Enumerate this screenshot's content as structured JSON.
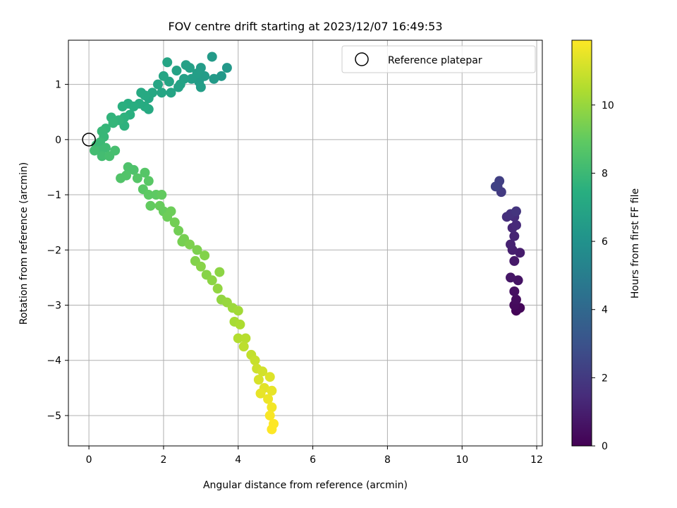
{
  "chart_data": {
    "type": "scatter",
    "title": "FOV centre drift starting at 2023/12/07 16:49:53",
    "xlabel": "Angular distance from reference (arcmin)",
    "ylabel": "Rotation from reference (arcmin)",
    "xlim": [
      -0.55,
      12.15
    ],
    "ylim": [
      -5.55,
      1.8
    ],
    "xticks": [
      0,
      2,
      4,
      6,
      8,
      10,
      12
    ],
    "yticks": [
      -5,
      -4,
      -3,
      -2,
      -1,
      0,
      1
    ],
    "grid": true,
    "legend": {
      "position": "top-right",
      "entries": [
        "Reference platepar"
      ]
    },
    "reference_point": {
      "x": 0,
      "y": 0
    },
    "colorbar": {
      "label": "Hours from first FF file",
      "colormap": "viridis",
      "range": [
        0,
        11.9
      ],
      "ticks": [
        0,
        2,
        4,
        6,
        8,
        10
      ]
    },
    "series": [
      {
        "points": [
          {
            "x": 11.45,
            "y": -3.1,
            "c": 0.1
          },
          {
            "x": 11.55,
            "y": -3.05,
            "c": 0.2
          },
          {
            "x": 11.4,
            "y": -3.0,
            "c": 0.3
          },
          {
            "x": 11.45,
            "y": -2.9,
            "c": 0.4
          },
          {
            "x": 11.4,
            "y": -2.75,
            "c": 0.5
          },
          {
            "x": 11.5,
            "y": -2.55,
            "c": 0.6
          },
          {
            "x": 11.3,
            "y": -2.5,
            "c": 0.7
          },
          {
            "x": 11.4,
            "y": -2.2,
            "c": 0.8
          },
          {
            "x": 11.55,
            "y": -2.05,
            "c": 0.9
          },
          {
            "x": 11.35,
            "y": -2.0,
            "c": 1.0
          },
          {
            "x": 11.3,
            "y": -1.9,
            "c": 1.1
          },
          {
            "x": 11.4,
            "y": -1.75,
            "c": 1.2
          },
          {
            "x": 11.35,
            "y": -1.6,
            "c": 1.3
          },
          {
            "x": 11.45,
            "y": -1.55,
            "c": 1.4
          },
          {
            "x": 11.4,
            "y": -1.4,
            "c": 1.5
          },
          {
            "x": 11.2,
            "y": -1.4,
            "c": 1.6
          },
          {
            "x": 11.3,
            "y": -1.35,
            "c": 1.7
          },
          {
            "x": 11.45,
            "y": -1.3,
            "c": 1.8
          },
          {
            "x": 11.05,
            "y": -0.95,
            "c": 2.0
          },
          {
            "x": 10.95,
            "y": -0.85,
            "c": 2.1
          },
          {
            "x": 11.0,
            "y": -0.75,
            "c": 2.2
          },
          {
            "x": 10.9,
            "y": -0.85,
            "c": 2.3
          },
          {
            "x": 3.7,
            "y": 1.3,
            "c": 6.3
          },
          {
            "x": 3.55,
            "y": 1.15,
            "c": 6.3
          },
          {
            "x": 3.3,
            "y": 1.5,
            "c": 6.4
          },
          {
            "x": 3.35,
            "y": 1.1,
            "c": 6.4
          },
          {
            "x": 3.1,
            "y": 1.15,
            "c": 6.5
          },
          {
            "x": 3.0,
            "y": 1.3,
            "c": 6.5
          },
          {
            "x": 2.95,
            "y": 1.05,
            "c": 6.5
          },
          {
            "x": 3.0,
            "y": 0.95,
            "c": 6.6
          },
          {
            "x": 2.9,
            "y": 1.2,
            "c": 6.6
          },
          {
            "x": 2.75,
            "y": 1.1,
            "c": 6.6
          },
          {
            "x": 2.7,
            "y": 1.3,
            "c": 6.7
          },
          {
            "x": 2.6,
            "y": 1.35,
            "c": 6.7
          },
          {
            "x": 2.55,
            "y": 1.1,
            "c": 6.7
          },
          {
            "x": 2.45,
            "y": 1.0,
            "c": 6.8
          },
          {
            "x": 2.35,
            "y": 1.25,
            "c": 6.8
          },
          {
            "x": 2.4,
            "y": 0.95,
            "c": 6.8
          },
          {
            "x": 2.15,
            "y": 1.05,
            "c": 6.9
          },
          {
            "x": 2.2,
            "y": 0.85,
            "c": 6.9
          },
          {
            "x": 2.1,
            "y": 1.4,
            "c": 6.9
          },
          {
            "x": 2.0,
            "y": 1.15,
            "c": 7.0
          },
          {
            "x": 1.95,
            "y": 0.85,
            "c": 7.0
          },
          {
            "x": 1.85,
            "y": 1.0,
            "c": 7.0
          },
          {
            "x": 1.7,
            "y": 0.85,
            "c": 7.1
          },
          {
            "x": 1.6,
            "y": 0.75,
            "c": 7.1
          },
          {
            "x": 1.5,
            "y": 0.8,
            "c": 7.2
          },
          {
            "x": 1.4,
            "y": 0.85,
            "c": 7.2
          },
          {
            "x": 1.6,
            "y": 0.55,
            "c": 7.2
          },
          {
            "x": 1.5,
            "y": 0.6,
            "c": 7.3
          },
          {
            "x": 1.35,
            "y": 0.65,
            "c": 7.3
          },
          {
            "x": 1.2,
            "y": 0.6,
            "c": 7.4
          },
          {
            "x": 1.05,
            "y": 0.65,
            "c": 7.4
          },
          {
            "x": 0.9,
            "y": 0.6,
            "c": 7.5
          },
          {
            "x": 1.1,
            "y": 0.45,
            "c": 7.5
          },
          {
            "x": 0.95,
            "y": 0.4,
            "c": 7.6
          },
          {
            "x": 0.95,
            "y": 0.25,
            "c": 7.6
          },
          {
            "x": 0.8,
            "y": 0.35,
            "c": 7.7
          },
          {
            "x": 0.6,
            "y": 0.4,
            "c": 7.7
          },
          {
            "x": 0.65,
            "y": 0.3,
            "c": 7.8
          },
          {
            "x": 0.45,
            "y": 0.2,
            "c": 7.8
          },
          {
            "x": 0.35,
            "y": 0.15,
            "c": 7.9
          },
          {
            "x": 0.4,
            "y": 0.05,
            "c": 7.9
          },
          {
            "x": 0.3,
            "y": -0.05,
            "c": 8.0
          },
          {
            "x": 0.2,
            "y": -0.1,
            "c": 8.0
          },
          {
            "x": 0.3,
            "y": -0.2,
            "c": 8.1
          },
          {
            "x": 0.45,
            "y": -0.15,
            "c": 8.1
          },
          {
            "x": 0.15,
            "y": -0.2,
            "c": 8.2
          },
          {
            "x": 0.35,
            "y": -0.3,
            "c": 8.2
          },
          {
            "x": 0.55,
            "y": -0.3,
            "c": 8.3
          },
          {
            "x": 0.7,
            "y": -0.2,
            "c": 8.3
          },
          {
            "x": 1.05,
            "y": -0.5,
            "c": 8.5
          },
          {
            "x": 1.2,
            "y": -0.55,
            "c": 8.5
          },
          {
            "x": 1.0,
            "y": -0.65,
            "c": 8.6
          },
          {
            "x": 0.85,
            "y": -0.7,
            "c": 8.6
          },
          {
            "x": 1.3,
            "y": -0.7,
            "c": 8.7
          },
          {
            "x": 1.5,
            "y": -0.6,
            "c": 8.7
          },
          {
            "x": 1.6,
            "y": -0.75,
            "c": 8.8
          },
          {
            "x": 1.45,
            "y": -0.9,
            "c": 8.8
          },
          {
            "x": 1.6,
            "y": -1.0,
            "c": 8.9
          },
          {
            "x": 1.8,
            "y": -1.0,
            "c": 8.9
          },
          {
            "x": 1.95,
            "y": -1.0,
            "c": 9.0
          },
          {
            "x": 1.65,
            "y": -1.2,
            "c": 9.0
          },
          {
            "x": 1.9,
            "y": -1.2,
            "c": 9.1
          },
          {
            "x": 2.0,
            "y": -1.3,
            "c": 9.1
          },
          {
            "x": 2.2,
            "y": -1.3,
            "c": 9.2
          },
          {
            "x": 2.1,
            "y": -1.4,
            "c": 9.2
          },
          {
            "x": 2.3,
            "y": -1.5,
            "c": 9.3
          },
          {
            "x": 2.4,
            "y": -1.65,
            "c": 9.3
          },
          {
            "x": 2.55,
            "y": -1.8,
            "c": 9.4
          },
          {
            "x": 2.5,
            "y": -1.85,
            "c": 9.4
          },
          {
            "x": 2.7,
            "y": -1.9,
            "c": 9.5
          },
          {
            "x": 2.9,
            "y": -2.0,
            "c": 9.5
          },
          {
            "x": 3.1,
            "y": -2.1,
            "c": 9.6
          },
          {
            "x": 2.85,
            "y": -2.2,
            "c": 9.6
          },
          {
            "x": 3.0,
            "y": -2.3,
            "c": 9.7
          },
          {
            "x": 3.15,
            "y": -2.45,
            "c": 9.7
          },
          {
            "x": 3.3,
            "y": -2.55,
            "c": 9.8
          },
          {
            "x": 3.5,
            "y": -2.4,
            "c": 9.8
          },
          {
            "x": 3.45,
            "y": -2.7,
            "c": 9.9
          },
          {
            "x": 3.55,
            "y": -2.9,
            "c": 9.9
          },
          {
            "x": 3.7,
            "y": -2.95,
            "c": 10.0
          },
          {
            "x": 3.85,
            "y": -3.05,
            "c": 10.1
          },
          {
            "x": 4.0,
            "y": -3.1,
            "c": 10.2
          },
          {
            "x": 3.9,
            "y": -3.3,
            "c": 10.3
          },
          {
            "x": 4.05,
            "y": -3.35,
            "c": 10.4
          },
          {
            "x": 4.0,
            "y": -3.6,
            "c": 10.5
          },
          {
            "x": 4.2,
            "y": -3.6,
            "c": 10.6
          },
          {
            "x": 4.15,
            "y": -3.75,
            "c": 10.7
          },
          {
            "x": 4.35,
            "y": -3.9,
            "c": 10.8
          },
          {
            "x": 4.45,
            "y": -4.0,
            "c": 10.9
          },
          {
            "x": 4.5,
            "y": -4.15,
            "c": 11.0
          },
          {
            "x": 4.65,
            "y": -4.2,
            "c": 11.1
          },
          {
            "x": 4.55,
            "y": -4.35,
            "c": 11.2
          },
          {
            "x": 4.85,
            "y": -4.3,
            "c": 11.3
          },
          {
            "x": 4.7,
            "y": -4.5,
            "c": 11.4
          },
          {
            "x": 4.9,
            "y": -4.55,
            "c": 11.5
          },
          {
            "x": 4.6,
            "y": -4.6,
            "c": 11.5
          },
          {
            "x": 4.8,
            "y": -4.7,
            "c": 11.6
          },
          {
            "x": 4.9,
            "y": -4.85,
            "c": 11.7
          },
          {
            "x": 4.85,
            "y": -5.0,
            "c": 11.8
          },
          {
            "x": 4.95,
            "y": -5.15,
            "c": 11.9
          },
          {
            "x": 4.9,
            "y": -5.25,
            "c": 11.9
          }
        ]
      }
    ]
  }
}
